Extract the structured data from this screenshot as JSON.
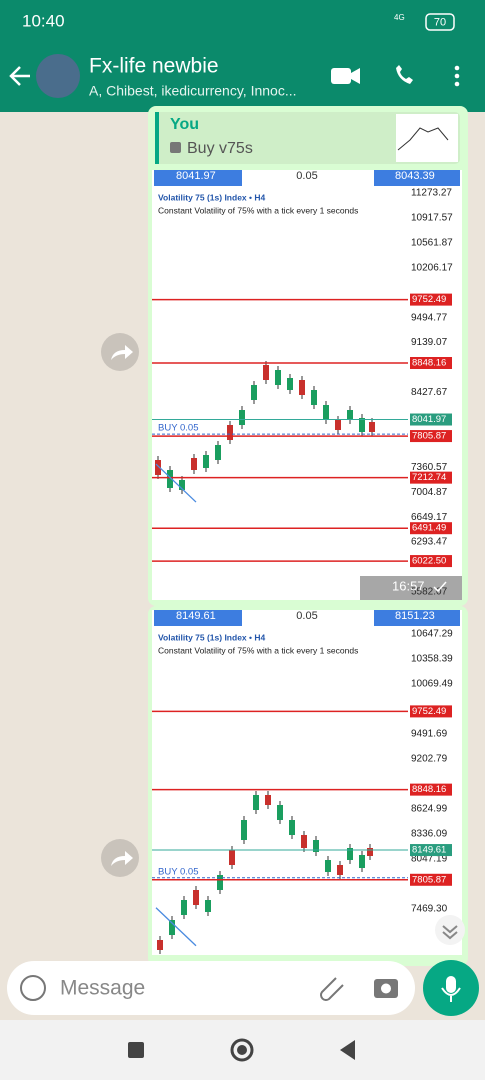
{
  "status": {
    "time": "10:40",
    "network": "4G",
    "battery": "70"
  },
  "header": {
    "title": "Fx-life newbie",
    "subtitle": "A, Chibest, ikedicurrency, Innoc..."
  },
  "reply": {
    "author": "You",
    "text": "Buy v75s"
  },
  "screenshots": [
    {
      "bid": "8041.97",
      "lot": "0.05",
      "ask": "8043.39",
      "title": "Volatility 75 (1s) Index • H4",
      "subtitle": "Constant Volatility of 75% with a tick every 1 seconds",
      "price_axis": [
        "11273.27",
        "10917.57",
        "10561.87",
        "10206.17",
        "9494.77",
        "9139.07",
        "8427.67",
        "7360.57",
        "7004.87",
        "6649.17",
        "6293.47",
        "5582.07"
      ],
      "levels": [
        "9752.49",
        "8848.16",
        "7805.87",
        "7212.74",
        "6491.49",
        "6022.50"
      ],
      "current_price": "8041.97",
      "order": "BUY 0.05",
      "time": "16:57"
    },
    {
      "bid": "8149.61",
      "lot": "0.05",
      "ask": "8151.23",
      "title": "Volatility 75 (1s) Index • H4",
      "subtitle": "Constant Volatility of 75% with a tick every 1 seconds",
      "price_axis": [
        "10647.29",
        "10358.39",
        "10069.49",
        "9491.69",
        "9202.79",
        "8624.99",
        "8336.09",
        "8047.19",
        "7469.30"
      ],
      "levels": [
        "9752.49",
        "8848.16",
        "7805.87"
      ],
      "current_price": "8149.61",
      "order": "BUY 0.05"
    }
  ],
  "input": {
    "placeholder": "Message"
  }
}
